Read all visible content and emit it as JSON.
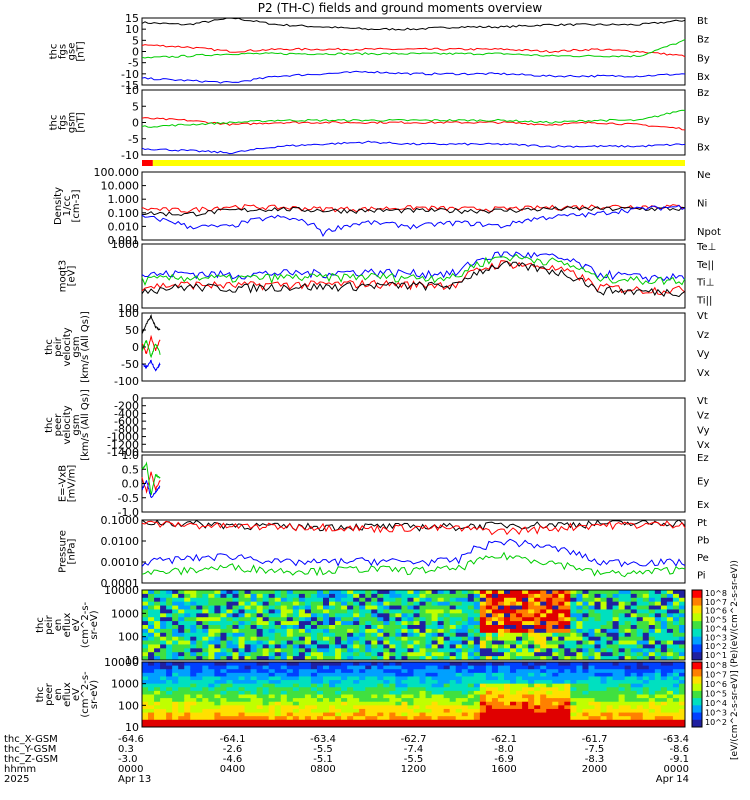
{
  "title": "P2 (TH-C) fields and ground moments overview",
  "colors": {
    "black": "#000000",
    "red": "#ff0000",
    "green": "#00cc00",
    "blue": "#0000ff",
    "yellow": "#ffff00",
    "axis": "#000000"
  },
  "status_bar": {
    "colors": [
      "red",
      "yellow"
    ],
    "red_fraction": 0.02
  },
  "colorbar": {
    "label": "[eV/(cm^2-s-sr-eV)] (Pe)(eV/(cm^2-s-sr-eV))",
    "ticks_top": [
      "10^8",
      "10^7",
      "10^6",
      "10^5",
      "10^4",
      "10^3",
      "10^2",
      "10^1"
    ],
    "ticks_bottom": [
      "10^8",
      "10^7",
      "10^6",
      "10^5",
      "10^4",
      "10^3",
      "10^2"
    ]
  },
  "panels": [
    {
      "id": "fgs-gse",
      "ylabel": [
        "thc",
        "fgs",
        "gse",
        "[nT]"
      ],
      "yticks": [
        "15",
        "10",
        "5",
        "0",
        "-5",
        "-10",
        "-15"
      ],
      "ylim": [
        -15,
        15
      ],
      "legend": [
        {
          "text": "Bt",
          "color": "black"
        },
        {
          "text": "Bz",
          "color": "red"
        },
        {
          "text": "By",
          "color": "green"
        },
        {
          "text": "Bx",
          "color": "blue"
        }
      ]
    },
    {
      "id": "fgs-gsm",
      "ylabel": [
        "thc",
        "fgs",
        "gsm",
        "[nT]"
      ],
      "yticks": [
        "10",
        "5",
        "0",
        "-5",
        "-10"
      ],
      "ylim": [
        -15,
        15
      ],
      "legend": [
        {
          "text": "Bz",
          "color": "red"
        },
        {
          "text": "By",
          "color": "green"
        },
        {
          "text": "Bx",
          "color": "blue"
        }
      ]
    },
    {
      "id": "density",
      "ylabel": [
        "Density",
        "1/cc",
        "[cm-3]"
      ],
      "yticks": [
        "100.000",
        "10.000",
        "1.000",
        "0.100",
        "0.010",
        "0.001"
      ],
      "ylim": [
        0.001,
        100
      ],
      "log": true,
      "legend": [
        {
          "text": "Ne",
          "color": "red"
        },
        {
          "text": "Ni",
          "color": "black"
        },
        {
          "text": "Npot",
          "color": "blue"
        }
      ]
    },
    {
      "id": "temperature",
      "ylabel": [
        "moqt3",
        "[eV]"
      ],
      "yticks": [
        "1000",
        "100"
      ],
      "ylim": [
        10,
        5000
      ],
      "log": true,
      "legend": [
        {
          "text": "Te⊥",
          "color": "red"
        },
        {
          "text": "Te||",
          "color": "black"
        },
        {
          "text": "Ti⊥",
          "color": "blue"
        },
        {
          "text": "Ti||",
          "color": "green"
        }
      ]
    },
    {
      "id": "peir-velocity",
      "ylabel": [
        "thc",
        "peir",
        "velocity",
        "gsm",
        "[km/s (All Qs)]"
      ],
      "yticks": [
        "100",
        "50",
        "0",
        "-50",
        "-100"
      ],
      "ylim": [
        -100,
        100
      ],
      "legend": [
        {
          "text": "Vt",
          "color": "black"
        },
        {
          "text": "Vz",
          "color": "red"
        },
        {
          "text": "Vy",
          "color": "green"
        },
        {
          "text": "Vx",
          "color": "blue"
        }
      ]
    },
    {
      "id": "peer-velocity",
      "ylabel": [
        "thc",
        "peer",
        "velocity",
        "gsm",
        "[km/s (All Qs)]"
      ],
      "yticks": [
        "0",
        "-200",
        "-400",
        "-600",
        "-800",
        "-1000",
        "-1200",
        "-1400"
      ],
      "ylim": [
        -1400,
        0
      ],
      "legend": [
        {
          "text": "Vt",
          "color": "black"
        },
        {
          "text": "Vz",
          "color": "red"
        },
        {
          "text": "Vy",
          "color": "green"
        },
        {
          "text": "Vx",
          "color": "blue"
        }
      ]
    },
    {
      "id": "efield",
      "ylabel": [
        "E=-VxB",
        "[mV/m]"
      ],
      "yticks": [
        "1.0",
        "0.5",
        "0.0",
        "-0.5",
        "-1.0"
      ],
      "ylim": [
        -1,
        1
      ],
      "legend": [
        {
          "text": "Ez",
          "color": "red"
        },
        {
          "text": "Ey",
          "color": "green"
        },
        {
          "text": "Ex",
          "color": "blue"
        }
      ]
    },
    {
      "id": "pressure",
      "ylabel": [
        "Pressure",
        "[nPa]"
      ],
      "yticks": [
        "0.1000",
        "0.0100",
        "0.0010",
        "0.0001"
      ],
      "ylim": [
        0.0001,
        0.1
      ],
      "log": true,
      "legend": [
        {
          "text": "Pt",
          "color": "black"
        },
        {
          "text": "Pb",
          "color": "red"
        },
        {
          "text": "Pe",
          "color": "green"
        },
        {
          "text": "Pi",
          "color": "blue"
        }
      ]
    },
    {
      "id": "peir-spec",
      "ylabel": [
        "thc",
        "peir",
        "en",
        "eflux",
        "eV",
        "(cm^2-s-",
        "sr-eV)"
      ],
      "yticks": [
        "10000",
        "1000",
        "100",
        "10"
      ],
      "ylim": [
        5,
        25000
      ],
      "log": true,
      "legend": []
    },
    {
      "id": "peer-spec",
      "ylabel": [
        "thc",
        "peer",
        "en",
        "eflux",
        "eV",
        "(cm^2-s-",
        "sr-eV)"
      ],
      "yticks": [
        "10000",
        "1000",
        "100",
        "10"
      ],
      "ylim": [
        5,
        25000
      ],
      "log": true,
      "legend": []
    }
  ],
  "xaxis": {
    "rows": [
      {
        "label": "thc_X-GSM",
        "values": [
          "-64.6",
          "-64.1",
          "-63.4",
          "-62.7",
          "-62.1",
          "-61.7",
          "-63.4"
        ]
      },
      {
        "label": "thc_Y-GSM",
        "values": [
          "0.3",
          "-2.6",
          "-5.5",
          "-7.4",
          "-8.0",
          "-7.5",
          "-8.6"
        ]
      },
      {
        "label": "thc_Z-GSM",
        "values": [
          "-3.0",
          "-4.6",
          "-5.1",
          "-5.5",
          "-6.9",
          "-8.3",
          "-9.1"
        ]
      },
      {
        "label": "hhmm",
        "values": [
          "0000",
          "0400",
          "0800",
          "1200",
          "1600",
          "2000",
          "0000"
        ]
      },
      {
        "label": "2025",
        "values": [
          "Apr 13",
          "",
          "",
          "",
          "",
          "",
          "Apr 14"
        ]
      }
    ]
  },
  "chart_data": [
    {
      "type": "line",
      "title": "thc fgs gse",
      "ylabel": "[nT]",
      "ylim": [
        -15,
        15
      ],
      "x": [
        0,
        2,
        4,
        6,
        8,
        10,
        12,
        14,
        16,
        18,
        20,
        22,
        24
      ],
      "series": [
        {
          "name": "Bt",
          "values": [
            13,
            12,
            15,
            12,
            11,
            10,
            10,
            11,
            11,
            12,
            12,
            12,
            14
          ]
        },
        {
          "name": "Bz",
          "values": [
            3,
            2,
            0,
            1,
            1,
            1,
            1,
            1,
            1,
            0,
            1,
            0,
            -2
          ]
        },
        {
          "name": "By",
          "values": [
            -3,
            -2,
            -1,
            -1,
            -1,
            -1,
            -1,
            -1,
            -1,
            -2,
            -2,
            -2,
            5
          ]
        },
        {
          "name": "Bx",
          "values": [
            -12,
            -13,
            -14,
            -11,
            -10,
            -9,
            -10,
            -10,
            -10,
            -11,
            -11,
            -11,
            -10
          ]
        }
      ]
    },
    {
      "type": "line",
      "title": "thc fgs gsm",
      "ylabel": "[nT]",
      "ylim": [
        -15,
        15
      ],
      "x": [
        0,
        2,
        4,
        6,
        8,
        10,
        12,
        14,
        16,
        18,
        20,
        22,
        24
      ],
      "series": [
        {
          "name": "Bz",
          "values": [
            2,
            1,
            -1,
            0,
            0,
            0,
            0,
            0,
            0,
            -1,
            0,
            -1,
            -3
          ]
        },
        {
          "name": "By",
          "values": [
            -2,
            -1,
            0,
            1,
            1,
            1,
            1,
            1,
            1,
            0,
            1,
            1,
            6
          ]
        },
        {
          "name": "Bx",
          "values": [
            -12,
            -13,
            -14,
            -11,
            -10,
            -9,
            -10,
            -10,
            -10,
            -11,
            -11,
            -11,
            -10
          ]
        }
      ]
    },
    {
      "type": "line",
      "title": "Density",
      "ylabel": "[cm-3]",
      "ylim": [
        0.001,
        100
      ],
      "x": [
        0,
        2,
        4,
        6,
        8,
        10,
        12,
        14,
        16,
        18,
        20,
        22,
        24
      ],
      "series": [
        {
          "name": "Ne",
          "values": [
            0.2,
            0.15,
            0.3,
            0.25,
            0.2,
            0.2,
            0.25,
            0.2,
            0.2,
            0.25,
            0.3,
            0.3,
            0.3
          ]
        },
        {
          "name": "Ni",
          "values": [
            0.1,
            0.08,
            0.15,
            0.2,
            0.15,
            0.15,
            0.15,
            0.15,
            0.15,
            0.2,
            0.2,
            0.2,
            0.2
          ]
        },
        {
          "name": "Npot",
          "values": [
            0.05,
            0.01,
            0.01,
            0.05,
            0.003,
            0.02,
            0.01,
            0.02,
            0.01,
            0.05,
            0.08,
            0.2,
            0.3
          ]
        }
      ]
    },
    {
      "type": "line",
      "title": "moqt3",
      "ylabel": "[eV]",
      "ylim": [
        10,
        5000
      ],
      "x": [
        0,
        2,
        4,
        6,
        8,
        10,
        12,
        14,
        16,
        18,
        20,
        22,
        24
      ],
      "series": [
        {
          "name": "Te⊥",
          "values": [
            80,
            100,
            90,
            100,
            100,
            110,
            100,
            100,
            800,
            500,
            80,
            60,
            60
          ]
        },
        {
          "name": "Te||",
          "values": [
            60,
            80,
            70,
            80,
            80,
            90,
            90,
            90,
            700,
            400,
            60,
            50,
            50
          ]
        },
        {
          "name": "Ti⊥",
          "values": [
            250,
            300,
            250,
            300,
            300,
            350,
            300,
            300,
            2000,
            1500,
            300,
            200,
            200
          ]
        },
        {
          "name": "Ti||",
          "values": [
            150,
            200,
            180,
            200,
            200,
            220,
            200,
            200,
            1500,
            1000,
            200,
            150,
            150
          ]
        }
      ]
    },
    {
      "type": "line",
      "title": "thc peir velocity gsm",
      "ylabel": "[km/s (All Qs)]",
      "ylim": [
        -100,
        100
      ],
      "x": [
        0,
        0.2,
        0.4,
        0.6,
        0.8
      ],
      "series": [
        {
          "name": "Vt",
          "values": [
            40,
            70,
            90,
            60,
            50
          ]
        },
        {
          "name": "Vz",
          "values": [
            10,
            -20,
            30,
            -10,
            20
          ]
        },
        {
          "name": "Vy",
          "values": [
            -10,
            20,
            -30,
            10,
            -20
          ]
        },
        {
          "name": "Vx",
          "values": [
            -50,
            -60,
            -40,
            -70,
            -50
          ]
        }
      ]
    },
    {
      "type": "line",
      "title": "thc peer velocity gsm",
      "ylabel": "[km/s (All Qs)]",
      "ylim": [
        -1400,
        0
      ],
      "x": [],
      "series": []
    },
    {
      "type": "line",
      "title": "E=-VxB",
      "ylabel": "[mV/m]",
      "ylim": [
        -1,
        1
      ],
      "x": [
        0,
        0.2,
        0.4,
        0.6,
        0.8
      ],
      "series": [
        {
          "name": "Ez",
          "values": [
            0.2,
            -0.3,
            0.4,
            -0.2,
            0.1
          ]
        },
        {
          "name": "Ey",
          "values": [
            0.5,
            0.7,
            -0.4,
            0.3,
            0.2
          ]
        },
        {
          "name": "Ex",
          "values": [
            -0.2,
            0.1,
            -0.5,
            -0.3,
            -0.1
          ]
        }
      ]
    },
    {
      "type": "line",
      "title": "Pressure",
      "ylabel": "[nPa]",
      "ylim": [
        0.0001,
        0.1
      ],
      "x": [
        0,
        2,
        4,
        6,
        8,
        10,
        12,
        14,
        16,
        18,
        20,
        22,
        24
      ],
      "series": [
        {
          "name": "Pt",
          "values": [
            0.08,
            0.07,
            0.06,
            0.05,
            0.05,
            0.05,
            0.05,
            0.05,
            0.06,
            0.06,
            0.07,
            0.07,
            0.08
          ]
        },
        {
          "name": "Pb",
          "values": [
            0.07,
            0.06,
            0.05,
            0.05,
            0.05,
            0.04,
            0.045,
            0.04,
            0.03,
            0.04,
            0.06,
            0.06,
            0.07
          ]
        },
        {
          "name": "Pe",
          "values": [
            0.0003,
            0.0004,
            0.0006,
            0.0004,
            0.0004,
            0.0005,
            0.0004,
            0.0005,
            0.002,
            0.001,
            0.0003,
            0.0003,
            0.0005
          ]
        },
        {
          "name": "Pi",
          "values": [
            0.001,
            0.0015,
            0.002,
            0.001,
            0.001,
            0.0012,
            0.001,
            0.0012,
            0.01,
            0.005,
            0.001,
            0.001,
            0.001
          ]
        }
      ]
    },
    {
      "type": "heatmap",
      "title": "thc peir en eflux",
      "ylabel": "eV",
      "ylim": [
        5,
        25000
      ],
      "x": [
        0,
        24
      ],
      "series": []
    },
    {
      "type": "heatmap",
      "title": "thc peer en eflux",
      "ylabel": "eV",
      "ylim": [
        5,
        25000
      ],
      "x": [
        0,
        24
      ],
      "series": []
    }
  ]
}
